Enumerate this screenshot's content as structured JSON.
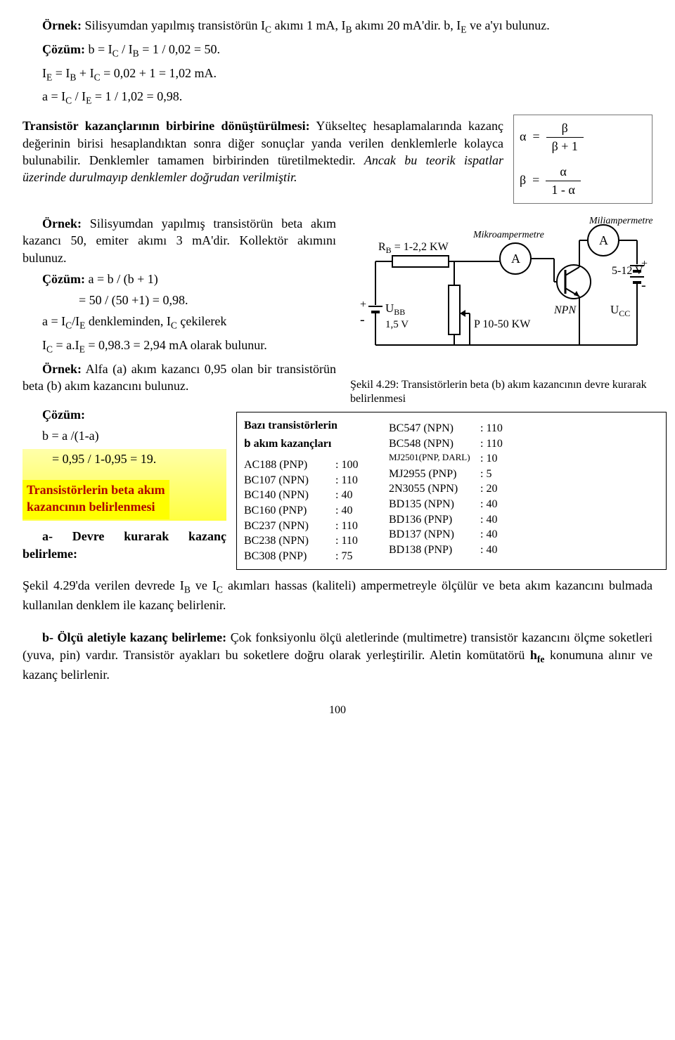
{
  "intro": {
    "ornek1_label": "Örnek:",
    "ornek1_text": " Silisyumdan yapılmış transistörün I",
    "ornek1_text2": " akımı 1 mA, I",
    "ornek1_text3": " akımı 20 mA'dir. b, I",
    "ornek1_text4": " ve a'yı bulunuz.",
    "cozum_label": "Çözüm:",
    "line2": " b = I",
    "line2b": " / I",
    "line2c": " = 1 / 0,02 = 50.",
    "line3a": "I",
    "line3b": " = I",
    "line3c": " + I",
    "line3d": " = 0,02 + 1 = 1,02 mA.",
    "line4a": "a = I",
    "line4b": " / I",
    "line4c": " = 1 / 1,02 = 0,98."
  },
  "formula": {
    "alpha": "α",
    "eq": "=",
    "beta": "β",
    "betap1": "β  +  1",
    "one_minus_a": "1 - α"
  },
  "para2": {
    "title": "Transistör kazançlarının birbirine dönüştürülmesi:",
    "body": " Yükselteç hesaplamalarında kazanç değerinin birisi hesaplandıktan sonra diğer sonuçlar yanda verilen denklemlerle kolayca bulunabilir. Denklemler tamamen birbirinden türetilmektedir. ",
    "italic": "Ancak bu teorik ispatlar üzerinde durulmayıp denklemler doğrudan verilmiştir."
  },
  "ornek2": {
    "label": "Örnek:",
    "body": " Silisyumdan yapılmış transistörün beta akım kazancı 50, emiter akımı 3 mA'dir. Kollektör akımını bulunuz.",
    "coz": "Çözüm:",
    "l1": " a = b / (b + 1)",
    "l2": "= 50 / (50 +1) = 0,98.",
    "l3a": "a = I",
    "l3b": "/I",
    "l3c": " denkleminden, I",
    "l3d": " çekilerek",
    "l4a": "I",
    "l4b": " = a.I",
    "l4c": " = 0,98.3 = 2,94 mA olarak bulunur."
  },
  "ornek3": {
    "label": "Örnek:",
    "body": " Alfa (a) akım kazancı 0,95 olan bir transistörün beta (b) akım kazancını bulunuz.",
    "coz": "Çözüm:",
    "l1": "b = a /(1-a)",
    "l2": "= 0,95 / 1-0,95 = 19."
  },
  "highlight": {
    "l1": "Transistörlerin beta akım",
    "l2": "kazancının belirlenmesi"
  },
  "para3": {
    "title": "a- Devre kurarak kazanç belirleme:",
    "body1": " Şekil 4.29'da verilen devrede I",
    "body2": " ve I",
    "body3": " akımları hassas (kaliteli) ampermetreyle ölçülür ve beta akım kazancını bulmada kullanılan denklem ile kazanç belirlenir."
  },
  "para4": {
    "title": "b- Ölçü aletiyle kazanç belirleme:",
    "body": " Çok fonksiyonlu ölçü aletlerinde (multimetre) transistör kazancını ölçme soketleri (yuva, pin) vardır. Transistör ayakları bu soketlere doğru olarak yerleştirilir. Aletin komütatörü ",
    "hfe": "h",
    "hfe_sub": "fe",
    "body2": " konumuna alınır ve kazanç belirlenir."
  },
  "circuit": {
    "miliamp": "Miliampermetre",
    "mikroamp": "Mikroampermetre",
    "A": "A",
    "RB": "R",
    "RB_sub": "B",
    "RB_val": " = 1-2,2 KW",
    "NPN": "NPN",
    "UBB": "U",
    "UBB_sub": "BB",
    "UCC": "U",
    "UCC_sub": "CC",
    "v15": "1,5 V",
    "P": "P",
    "pval": " 10-50 KW",
    "v512": "5-12 V",
    "plus": "+",
    "minus": "-",
    "caption": "Şekil 4.29: Transistörlerin beta (b) akım kazancının devre kurarak belirlenmesi"
  },
  "gain": {
    "title1": "Bazı transistörlerin",
    "title2": "b  akım kazançları",
    "rows_left": [
      {
        "n": "AC188 (PNP)",
        "v": ": 100"
      },
      {
        "n": "BC107 (NPN)",
        "v": ": 110"
      },
      {
        "n": "BC140 (NPN)",
        "v": ": 40"
      },
      {
        "n": "BC160 (PNP)",
        "v": ": 40"
      },
      {
        "n": "BC237 (NPN)",
        "v": ": 110"
      },
      {
        "n": "BC238 (NPN)",
        "v": ": 110"
      },
      {
        "n": "BC308 (PNP)",
        "v": ": 75"
      }
    ],
    "rows_right": [
      {
        "n": "BC547 (NPN)",
        "v": ": 110"
      },
      {
        "n": "BC548 (NPN)",
        "v": ": 110"
      },
      {
        "n": "MJ2501(PNP, DARL)",
        "v": ": 10",
        "small": true
      },
      {
        "n": "MJ2955 (PNP)",
        "v": ": 5"
      },
      {
        "n": "2N3055 (NPN)",
        "v": ": 20"
      },
      {
        "n": "BD135 (NPN)",
        "v": ": 40"
      },
      {
        "n": "BD136 (PNP)",
        "v": ": 40"
      },
      {
        "n": "BD137 (NPN)",
        "v": ": 40"
      },
      {
        "n": "BD138 (PNP)",
        "v": ": 40"
      }
    ]
  },
  "page_no": "100",
  "colors": {
    "highlight": "#ffff00",
    "hl_text": "#b00000",
    "line": "#000000"
  }
}
